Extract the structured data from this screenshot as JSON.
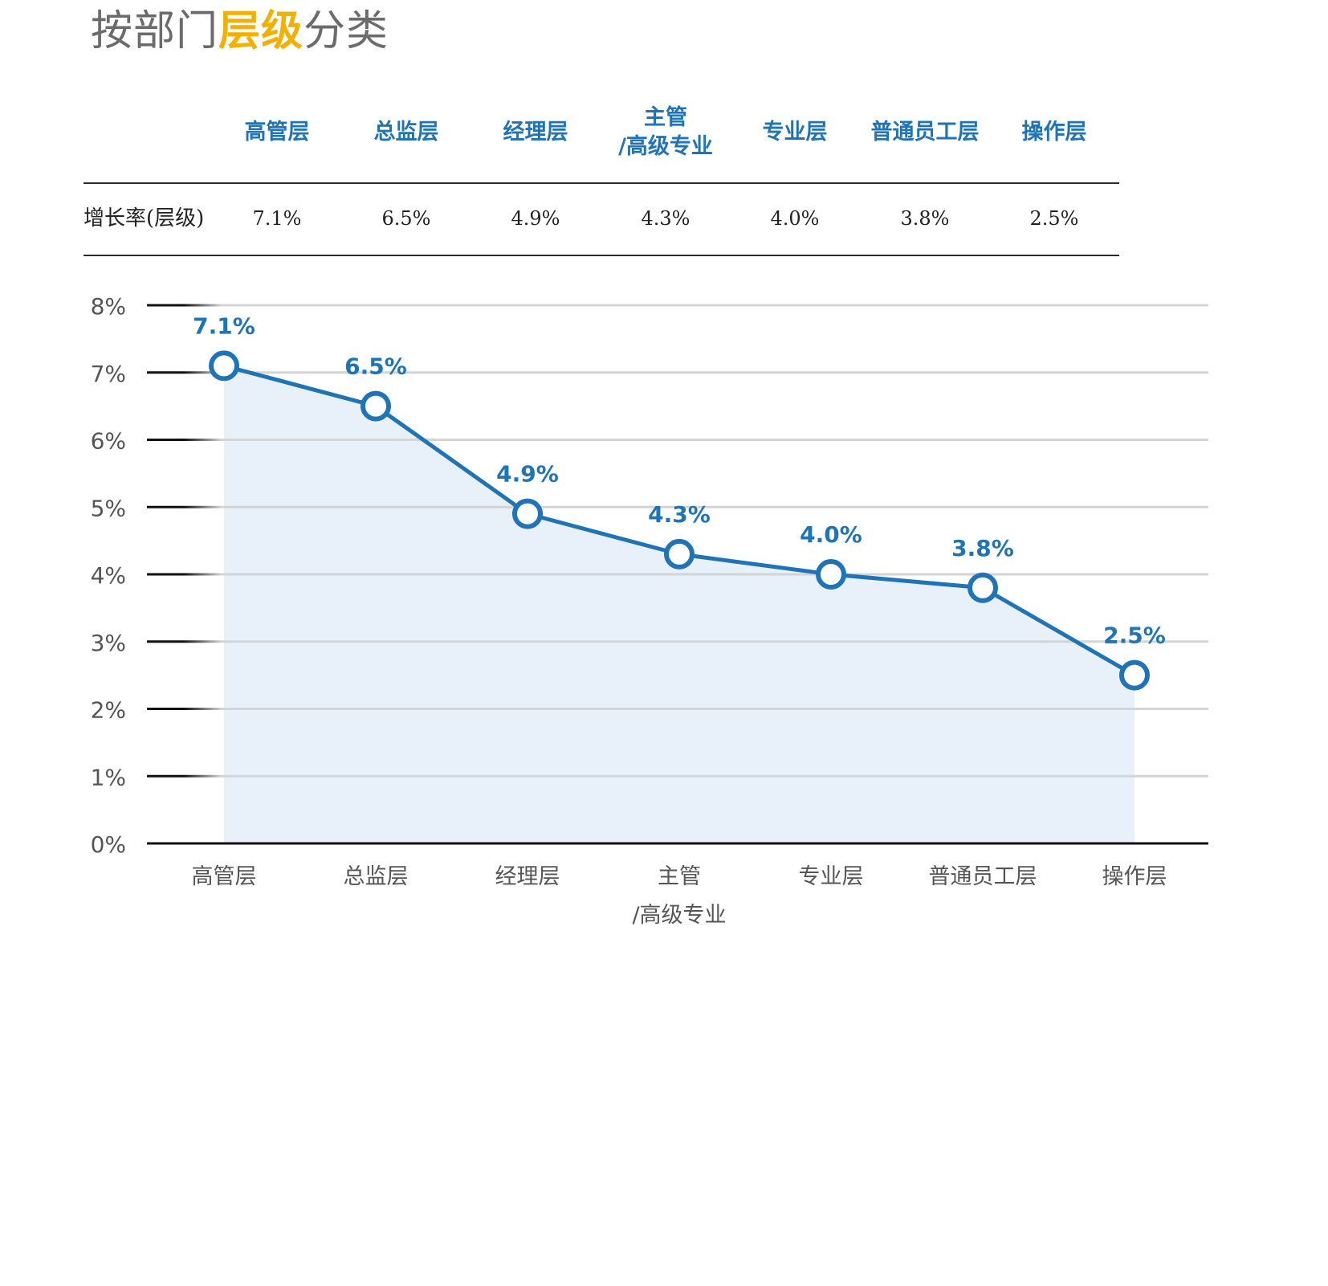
{
  "page": {
    "title_pre": "按部门",
    "title_highlight": "层级",
    "title_post": "分类",
    "accent_color": "#f2b000"
  },
  "table": {
    "row_label": "增长率(层级)",
    "headers": [
      {
        "line1": "高管层",
        "line2": ""
      },
      {
        "line1": "总监层",
        "line2": ""
      },
      {
        "line1": "经理层",
        "line2": ""
      },
      {
        "line1": "主管",
        "line2": "/高级专业"
      },
      {
        "line1": "专业层",
        "line2": ""
      },
      {
        "line1": "普通员工层",
        "line2": ""
      },
      {
        "line1": "操作层",
        "line2": ""
      }
    ],
    "values": [
      "7.1%",
      "6.5%",
      "4.9%",
      "4.3%",
      "4.0%",
      "3.8%",
      "2.5%"
    ]
  },
  "chart_data": {
    "type": "area",
    "title": "",
    "xlabel": "",
    "ylabel": "",
    "categories": [
      [
        "高管层"
      ],
      [
        "总监层"
      ],
      [
        "经理层"
      ],
      [
        "主管",
        "/高级专业"
      ],
      [
        "专业层"
      ],
      [
        "普通员工层"
      ],
      [
        "操作层"
      ]
    ],
    "series": [
      {
        "values": [
          7.1,
          6.5,
          4.9,
          4.3,
          4.0,
          3.8,
          2.5
        ]
      }
    ],
    "data_labels": [
      "7.1%",
      "6.5%",
      "4.9%",
      "4.3%",
      "4.0%",
      "3.8%",
      "2.5%"
    ],
    "ylim": [
      0,
      8
    ],
    "yticks": [
      "0%",
      "1%",
      "2%",
      "3%",
      "4%",
      "5%",
      "6%",
      "7%",
      "8%"
    ],
    "grid": true,
    "line_color": "#1f74b8",
    "fill_color": "#e8f1f9",
    "grid_color": "#d4d4d4"
  }
}
